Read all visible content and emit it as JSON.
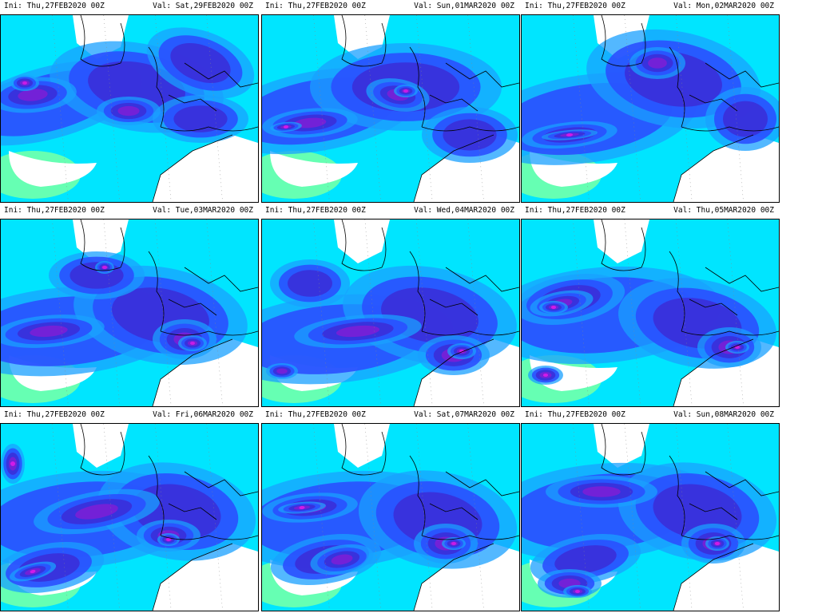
{
  "panels": [
    {
      "ini": "Ini: Thu,27FEB2020  00Z",
      "val": "Val: Sat,29FEB2020  00Z"
    },
    {
      "ini": "Ini: Thu,27FEB2020  00Z",
      "val": "Val: Sun,01MAR2020  00Z"
    },
    {
      "ini": "Ini: Thu,27FEB2020  00Z",
      "val": "Val: Mon,02MAR2020  00Z"
    },
    {
      "ini": "Ini: Thu,27FEB2020  00Z",
      "val": "Val: Tue,03MAR2020  00Z"
    },
    {
      "ini": "Ini: Thu,27FEB2020  00Z",
      "val": "Val: Wed,04MAR2020  00Z"
    },
    {
      "ini": "Ini: Thu,27FEB2020  00Z",
      "val": "Val: Thu,05MAR2020  00Z"
    },
    {
      "ini": "Ini: Thu,27FEB2020  00Z",
      "val": "Val: Fri,06MAR2020  00Z"
    },
    {
      "ini": "Ini: Thu,27FEB2020  00Z",
      "val": "Val: Sat,07MAR2020  00Z"
    },
    {
      "ini": "Ini: Thu,27FEB2020  00Z",
      "val": "Val: Sun,08MAR2020  00Z"
    }
  ],
  "colors": {
    "light_green": "#66ffb3",
    "cyan": "#00e5ff",
    "light_blue": "#1aa0ff",
    "blue": "#2a50ff",
    "dark_blue": "#3a2fd9",
    "purple": "#7a1fd6",
    "magenta": "#d21ce8",
    "land_line": "#000000"
  }
}
